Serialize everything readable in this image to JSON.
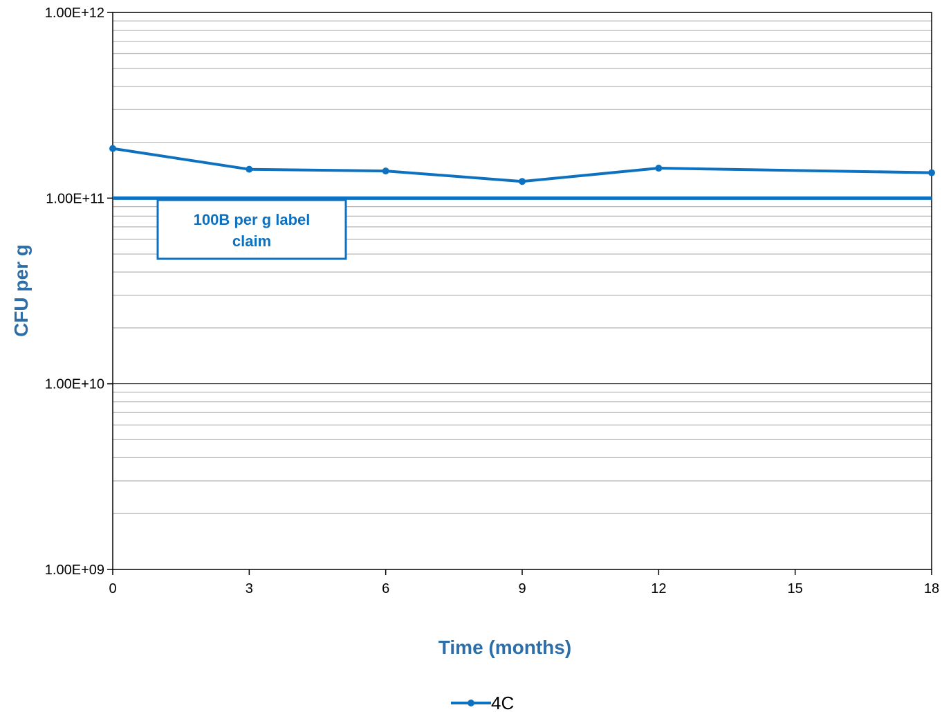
{
  "chart_data": {
    "type": "line",
    "xlabel": "Time (months)",
    "ylabel": "CFU  per  g",
    "yscale": "log",
    "ylim": [
      1000000000.0,
      1000000000000.0
    ],
    "xlim": [
      0,
      18
    ],
    "x_ticks": [
      "0",
      "3",
      "6",
      "9",
      "12",
      "15",
      "18"
    ],
    "y_ticks": [
      "1.00E+09",
      "1.00E+10",
      "1.00E+11",
      "1.00E+12"
    ],
    "grid": true,
    "legend_position": "bottom",
    "series": [
      {
        "name": "4C",
        "color": "#0e71bf",
        "x": [
          0,
          3,
          6,
          9,
          12,
          18
        ],
        "y": [
          185000000000.0,
          143000000000.0,
          140000000000.0,
          123000000000.0,
          145000000000.0,
          137000000000.0
        ]
      }
    ],
    "reference_line": {
      "y": 100000000000.0,
      "color": "#0e71bf"
    },
    "annotation": {
      "lines": [
        "100B per g label",
        "claim"
      ]
    }
  }
}
